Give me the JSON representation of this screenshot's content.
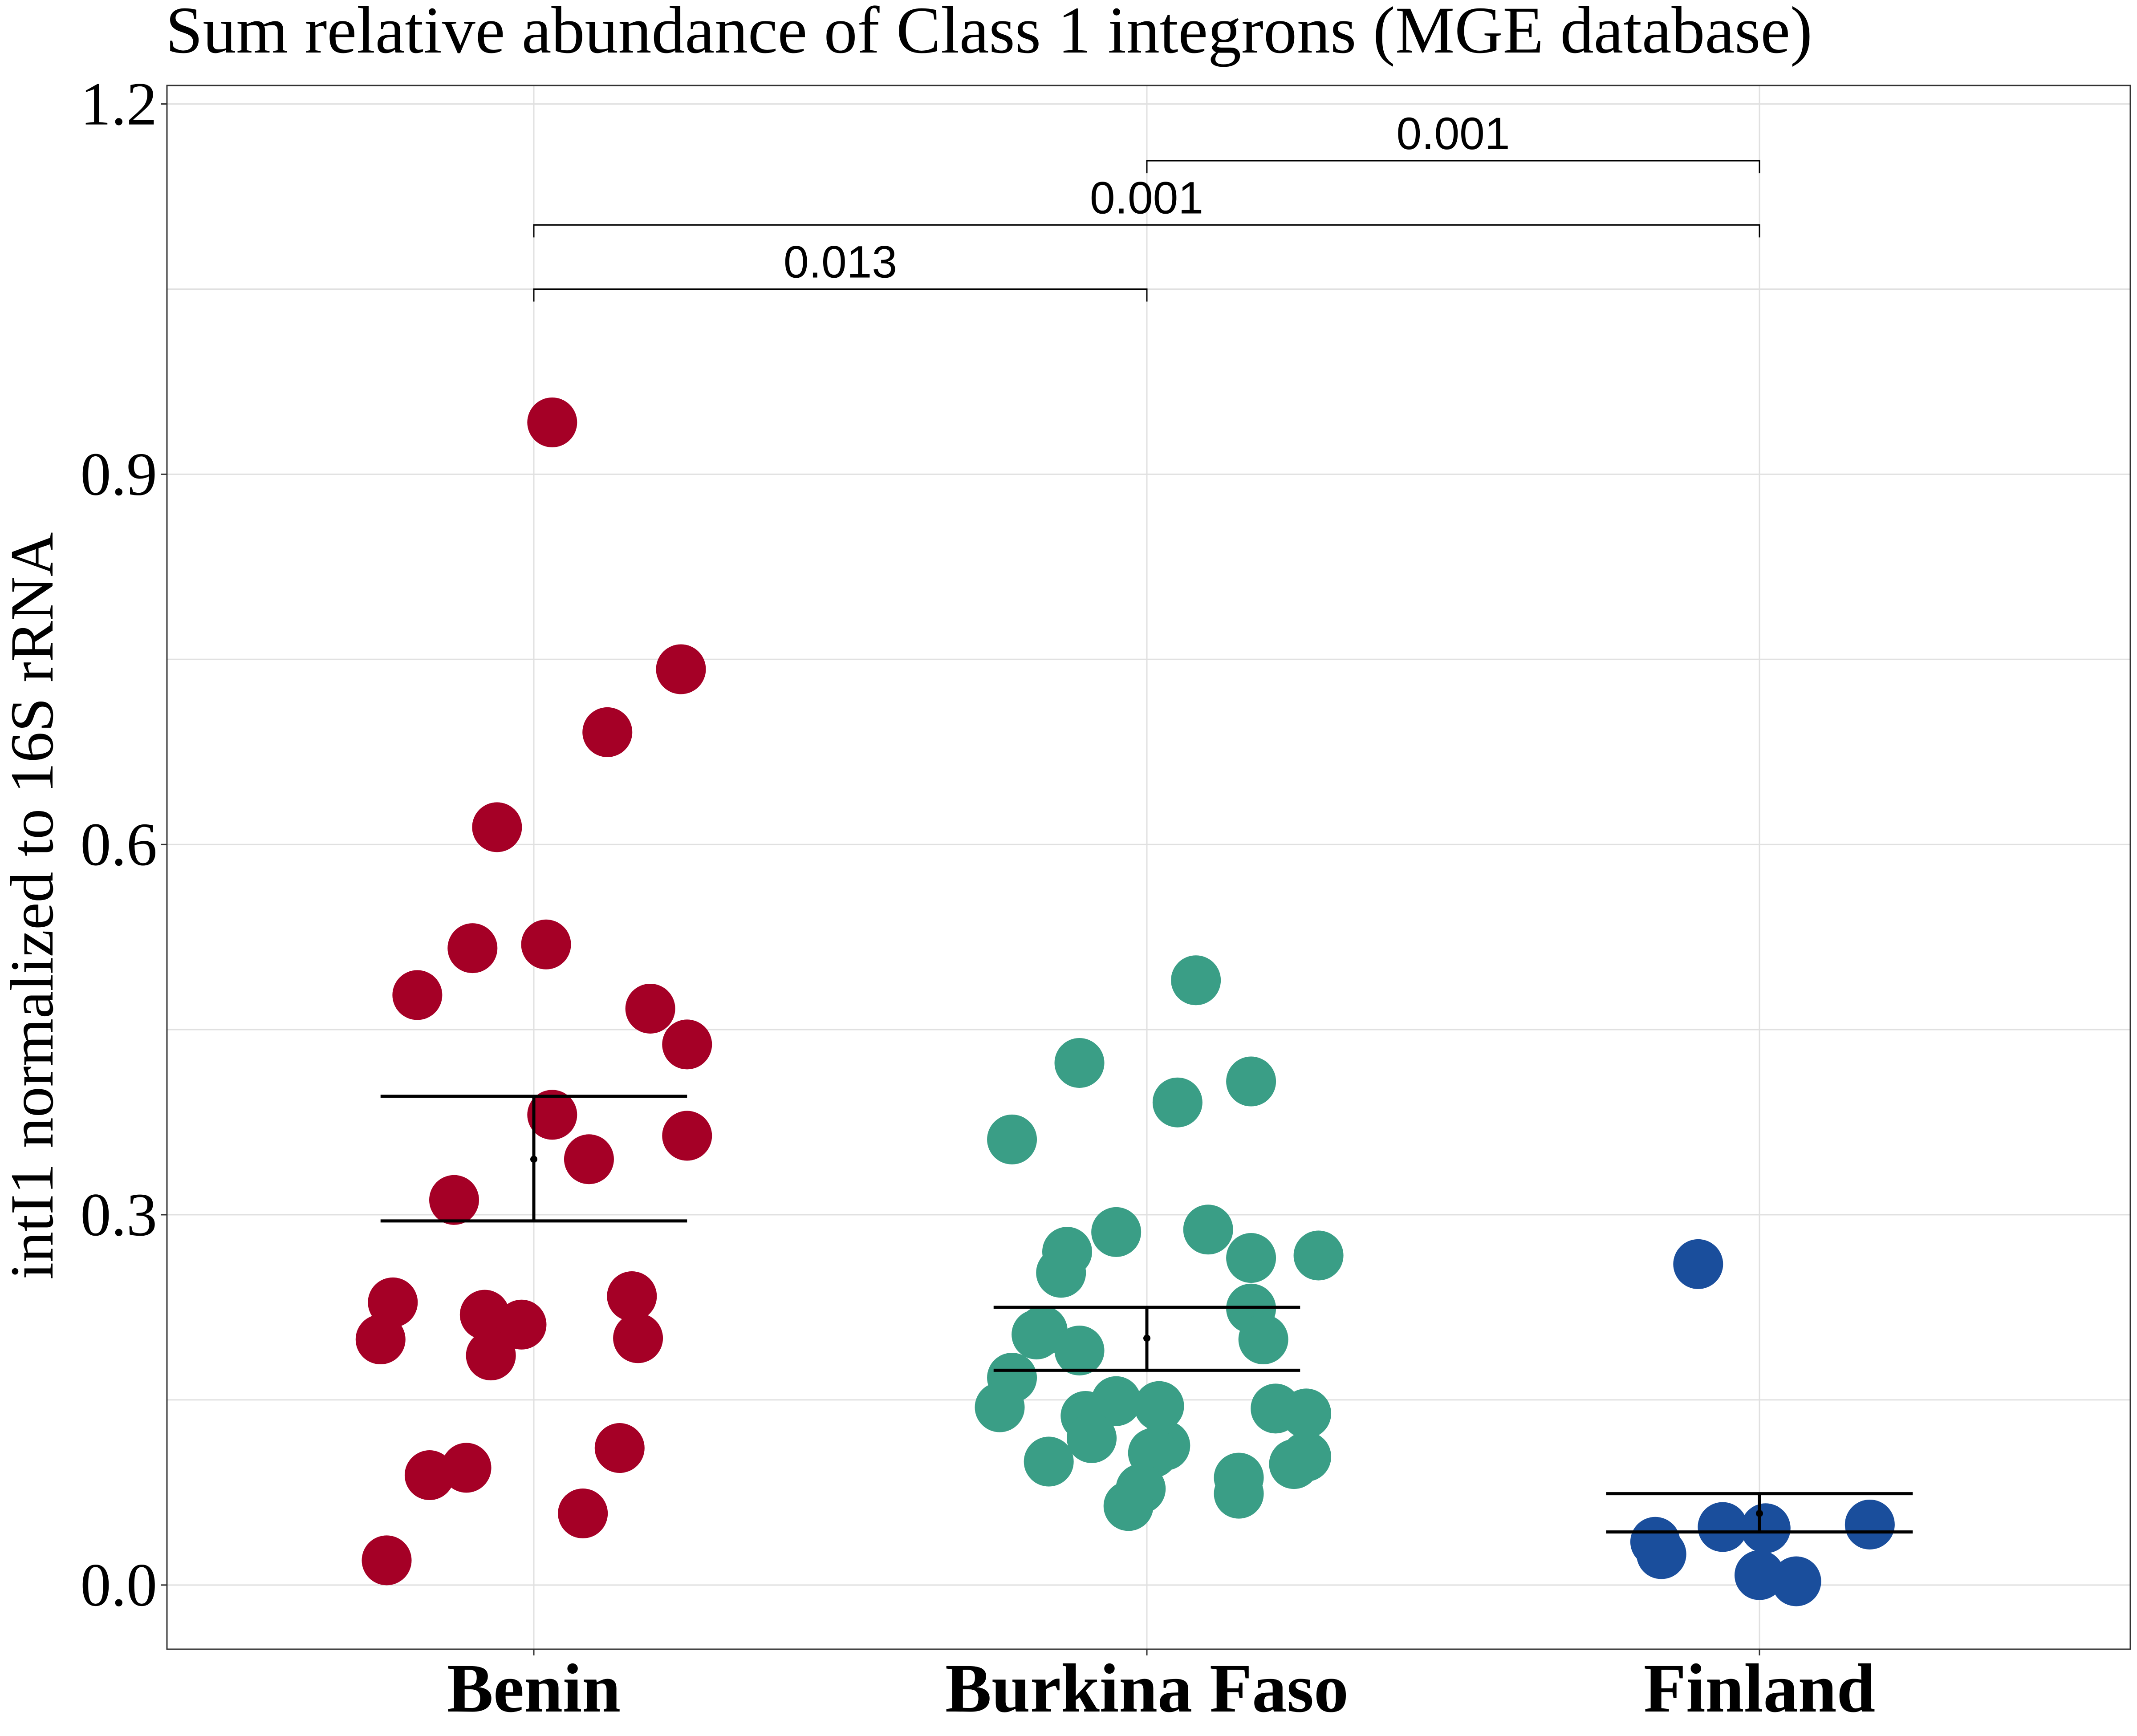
{
  "chart_data": {
    "type": "scatter",
    "title": "Sum relative abundance of Class 1 integrons (MGE database)",
    "xlabel": "",
    "ylabel": "intI1 normalized to 16S rRNA",
    "ylim": [
      -0.052,
      1.215
    ],
    "yticks": [
      "0.0",
      "0.3",
      "0.6",
      "0.9",
      "1.2"
    ],
    "ytick_values": [
      0.0,
      0.3,
      0.6,
      0.9,
      1.2
    ],
    "grid": true,
    "categories": [
      "Benin",
      "Burkina Faso",
      "Finland"
    ],
    "series": [
      {
        "category": "Benin",
        "color": "#a50026",
        "points": [
          {
            "jitter": 0.03,
            "y": 0.942
          },
          {
            "jitter": 0.24,
            "y": 0.742
          },
          {
            "jitter": 0.12,
            "y": 0.691
          },
          {
            "jitter": -0.06,
            "y": 0.614
          },
          {
            "jitter": 0.02,
            "y": 0.519
          },
          {
            "jitter": -0.1,
            "y": 0.516
          },
          {
            "jitter": -0.19,
            "y": 0.478
          },
          {
            "jitter": 0.19,
            "y": 0.467
          },
          {
            "jitter": 0.25,
            "y": 0.438
          },
          {
            "jitter": 0.03,
            "y": 0.381
          },
          {
            "jitter": 0.25,
            "y": 0.364
          },
          {
            "jitter": 0.09,
            "y": 0.345
          },
          {
            "jitter": -0.13,
            "y": 0.312
          },
          {
            "jitter": 0.16,
            "y": 0.234
          },
          {
            "jitter": -0.23,
            "y": 0.229
          },
          {
            "jitter": -0.08,
            "y": 0.219
          },
          {
            "jitter": -0.02,
            "y": 0.211
          },
          {
            "jitter": -0.25,
            "y": 0.199
          },
          {
            "jitter": 0.17,
            "y": 0.2
          },
          {
            "jitter": -0.07,
            "y": 0.186
          },
          {
            "jitter": 0.14,
            "y": 0.111
          },
          {
            "jitter": -0.11,
            "y": 0.095
          },
          {
            "jitter": -0.17,
            "y": 0.089
          },
          {
            "jitter": 0.08,
            "y": 0.058
          },
          {
            "jitter": -0.24,
            "y": 0.02
          }
        ],
        "mean": 0.345,
        "error_upper": 0.396,
        "error_lower": 0.295
      },
      {
        "category": "Burkina Faso",
        "color": "#3a9e86",
        "points": [
          {
            "jitter": 0.08,
            "y": 0.49
          },
          {
            "jitter": -0.11,
            "y": 0.423
          },
          {
            "jitter": 0.17,
            "y": 0.408
          },
          {
            "jitter": 0.05,
            "y": 0.391
          },
          {
            "jitter": -0.22,
            "y": 0.361
          },
          {
            "jitter": 0.1,
            "y": 0.288
          },
          {
            "jitter": -0.05,
            "y": 0.286
          },
          {
            "jitter": -0.13,
            "y": 0.27
          },
          {
            "jitter": 0.28,
            "y": 0.267
          },
          {
            "jitter": 0.17,
            "y": 0.265
          },
          {
            "jitter": -0.14,
            "y": 0.253
          },
          {
            "jitter": 0.17,
            "y": 0.224
          },
          {
            "jitter": -0.17,
            "y": 0.206
          },
          {
            "jitter": -0.18,
            "y": 0.203
          },
          {
            "jitter": 0.19,
            "y": 0.199
          },
          {
            "jitter": -0.11,
            "y": 0.19
          },
          {
            "jitter": -0.22,
            "y": 0.168
          },
          {
            "jitter": -0.05,
            "y": 0.149
          },
          {
            "jitter": 0.02,
            "y": 0.145
          },
          {
            "jitter": 0.21,
            "y": 0.143
          },
          {
            "jitter": -0.24,
            "y": 0.144
          },
          {
            "jitter": 0.26,
            "y": 0.139
          },
          {
            "jitter": -0.1,
            "y": 0.137
          },
          {
            "jitter": -0.09,
            "y": 0.119
          },
          {
            "jitter": 0.03,
            "y": 0.113
          },
          {
            "jitter": 0.01,
            "y": 0.107
          },
          {
            "jitter": 0.26,
            "y": 0.104
          },
          {
            "jitter": 0.24,
            "y": 0.098
          },
          {
            "jitter": -0.16,
            "y": 0.1
          },
          {
            "jitter": 0.15,
            "y": 0.087
          },
          {
            "jitter": -0.01,
            "y": 0.078
          },
          {
            "jitter": 0.15,
            "y": 0.074
          },
          {
            "jitter": -0.03,
            "y": 0.064
          }
        ],
        "mean": 0.2,
        "error_upper": 0.225,
        "error_lower": 0.174
      },
      {
        "category": "Finland",
        "color": "#1a4e9c",
        "points": [
          {
            "jitter": -0.1,
            "y": 0.26
          },
          {
            "jitter": 0.18,
            "y": 0.049
          },
          {
            "jitter": -0.06,
            "y": 0.047
          },
          {
            "jitter": 0.01,
            "y": 0.046
          },
          {
            "jitter": -0.17,
            "y": 0.035
          },
          {
            "jitter": -0.16,
            "y": 0.025
          },
          {
            "jitter": 0.0,
            "y": 0.008
          },
          {
            "jitter": 0.06,
            "y": 0.003
          }
        ],
        "mean": 0.058,
        "error_upper": 0.074,
        "error_lower": 0.043
      }
    ],
    "comparisons": [
      {
        "from": "Benin",
        "to": "Burkina Faso",
        "label": "0.013",
        "y": 1.05
      },
      {
        "from": "Benin",
        "to": "Finland",
        "label": "0.001",
        "y": 1.102
      },
      {
        "from": "Burkina Faso",
        "to": "Finland",
        "label": "0.001",
        "y": 1.154
      }
    ]
  }
}
